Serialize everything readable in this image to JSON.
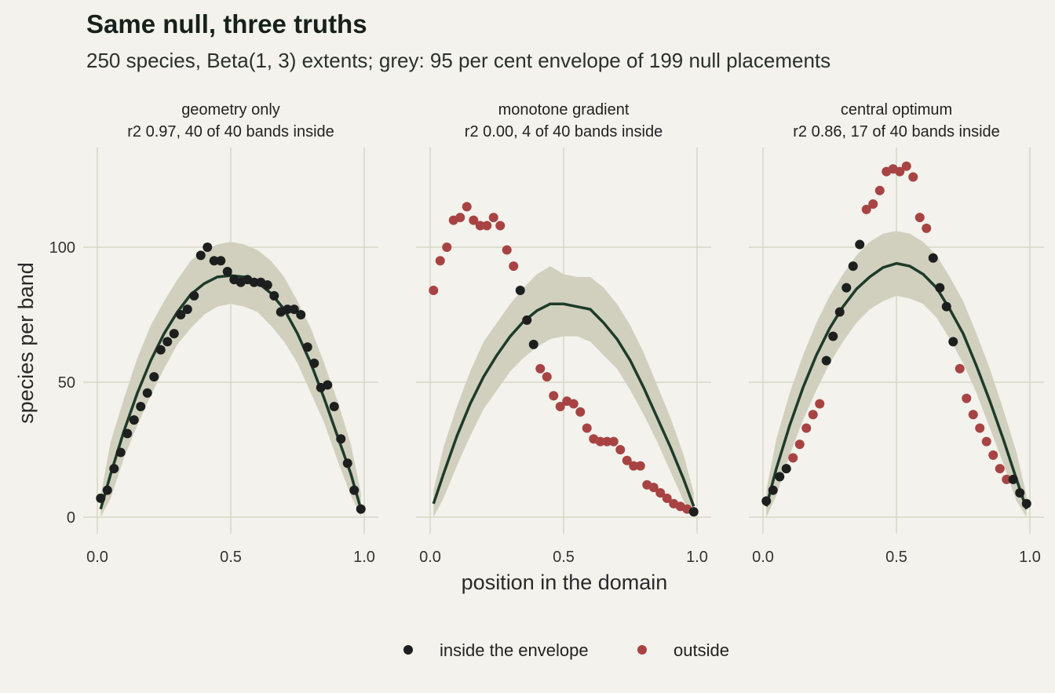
{
  "title": "Same null, three truths",
  "subtitle": "250 species, Beta(1, 3) extents; grey: 95 per cent envelope of 199 null placements",
  "colors": {
    "background": "#f3f2ec",
    "envelope": "#d1d0bf",
    "null_line": "#1e3b2a",
    "inside": "#1c1f1d",
    "outside": "#a84343",
    "grid": "#d8d7c6"
  },
  "legend": {
    "inside_label": "inside the envelope",
    "outside_label": "outside"
  },
  "chart_data": [
    {
      "type": "scatter",
      "panel_title": "geometry only",
      "panel_subtitle": "r2 0.97, 40 of 40 bands inside",
      "xlabel": "position in the domain",
      "ylabel": "species per band",
      "xlim": [
        0,
        1
      ],
      "ylim": [
        0,
        130
      ],
      "x_ticks": [
        "0.0",
        "0.5",
        "1.0"
      ],
      "y_ticks": [
        "0",
        "50",
        "100"
      ],
      "null_mean": [
        [
          0.0125,
          3
        ],
        [
          0.05,
          16
        ],
        [
          0.1,
          32
        ],
        [
          0.15,
          46
        ],
        [
          0.2,
          58
        ],
        [
          0.25,
          68
        ],
        [
          0.3,
          76
        ],
        [
          0.35,
          82.5
        ],
        [
          0.4,
          86.5
        ],
        [
          0.45,
          89
        ],
        [
          0.5,
          89.5
        ],
        [
          0.55,
          89
        ],
        [
          0.6,
          87
        ],
        [
          0.65,
          83
        ],
        [
          0.7,
          77
        ],
        [
          0.75,
          68
        ],
        [
          0.8,
          57
        ],
        [
          0.85,
          44
        ],
        [
          0.9,
          30
        ],
        [
          0.95,
          16
        ],
        [
          0.9875,
          3
        ]
      ],
      "envelope": [
        [
          0.0125,
          0,
          8
        ],
        [
          0.05,
          7,
          28
        ],
        [
          0.1,
          22,
          44
        ],
        [
          0.15,
          34,
          59
        ],
        [
          0.2,
          45,
          71
        ],
        [
          0.25,
          55,
          80
        ],
        [
          0.3,
          64,
          88
        ],
        [
          0.35,
          70,
          95
        ],
        [
          0.4,
          75,
          99
        ],
        [
          0.45,
          78,
          101
        ],
        [
          0.5,
          79,
          102
        ],
        [
          0.55,
          78,
          101
        ],
        [
          0.6,
          76,
          99
        ],
        [
          0.65,
          71,
          95
        ],
        [
          0.7,
          65,
          89
        ],
        [
          0.75,
          57,
          80
        ],
        [
          0.8,
          46,
          70
        ],
        [
          0.85,
          35,
          57
        ],
        [
          0.9,
          21,
          43
        ],
        [
          0.95,
          8,
          27
        ],
        [
          0.9875,
          0,
          9
        ]
      ],
      "points": [
        {
          "x": 0.0125,
          "y": 7,
          "inside": true
        },
        {
          "x": 0.0375,
          "y": 10,
          "inside": true
        },
        {
          "x": 0.0625,
          "y": 18,
          "inside": true
        },
        {
          "x": 0.0875,
          "y": 24,
          "inside": true
        },
        {
          "x": 0.1125,
          "y": 31,
          "inside": true
        },
        {
          "x": 0.1375,
          "y": 36,
          "inside": true
        },
        {
          "x": 0.1625,
          "y": 41,
          "inside": true
        },
        {
          "x": 0.1875,
          "y": 46,
          "inside": true
        },
        {
          "x": 0.2125,
          "y": 52,
          "inside": true
        },
        {
          "x": 0.2375,
          "y": 62,
          "inside": true
        },
        {
          "x": 0.2625,
          "y": 65,
          "inside": true
        },
        {
          "x": 0.2875,
          "y": 68,
          "inside": true
        },
        {
          "x": 0.3125,
          "y": 75,
          "inside": true
        },
        {
          "x": 0.3375,
          "y": 77,
          "inside": true
        },
        {
          "x": 0.3625,
          "y": 82,
          "inside": true
        },
        {
          "x": 0.3875,
          "y": 97,
          "inside": true
        },
        {
          "x": 0.4125,
          "y": 100,
          "inside": true
        },
        {
          "x": 0.4375,
          "y": 95,
          "inside": true
        },
        {
          "x": 0.4625,
          "y": 95,
          "inside": true
        },
        {
          "x": 0.4875,
          "y": 91,
          "inside": true
        },
        {
          "x": 0.5125,
          "y": 88,
          "inside": true
        },
        {
          "x": 0.5375,
          "y": 87,
          "inside": true
        },
        {
          "x": 0.5625,
          "y": 88,
          "inside": true
        },
        {
          "x": 0.5875,
          "y": 87,
          "inside": true
        },
        {
          "x": 0.6125,
          "y": 87,
          "inside": true
        },
        {
          "x": 0.6375,
          "y": 86,
          "inside": true
        },
        {
          "x": 0.6625,
          "y": 82,
          "inside": true
        },
        {
          "x": 0.6875,
          "y": 76,
          "inside": true
        },
        {
          "x": 0.7125,
          "y": 77,
          "inside": true
        },
        {
          "x": 0.7375,
          "y": 77,
          "inside": true
        },
        {
          "x": 0.7625,
          "y": 75,
          "inside": true
        },
        {
          "x": 0.7875,
          "y": 63,
          "inside": true
        },
        {
          "x": 0.8125,
          "y": 57,
          "inside": true
        },
        {
          "x": 0.8375,
          "y": 48,
          "inside": true
        },
        {
          "x": 0.8625,
          "y": 49,
          "inside": true
        },
        {
          "x": 0.8875,
          "y": 41,
          "inside": true
        },
        {
          "x": 0.9125,
          "y": 29,
          "inside": true
        },
        {
          "x": 0.9375,
          "y": 20,
          "inside": true
        },
        {
          "x": 0.9625,
          "y": 10,
          "inside": true
        },
        {
          "x": 0.9875,
          "y": 3,
          "inside": true
        }
      ]
    },
    {
      "type": "scatter",
      "panel_title": "monotone gradient",
      "panel_subtitle": "r2 0.00, 4 of 40 bands inside",
      "xlabel": "position in the domain",
      "ylabel": "species per band",
      "xlim": [
        0,
        1
      ],
      "ylim": [
        0,
        130
      ],
      "x_ticks": [
        "0.0",
        "0.5",
        "1.0"
      ],
      "y_ticks": [
        "0",
        "50",
        "100"
      ],
      "null_mean": [
        [
          0.0125,
          5
        ],
        [
          0.05,
          16
        ],
        [
          0.1,
          30
        ],
        [
          0.15,
          42
        ],
        [
          0.2,
          52
        ],
        [
          0.25,
          60
        ],
        [
          0.3,
          67
        ],
        [
          0.35,
          72.5
        ],
        [
          0.4,
          76.5
        ],
        [
          0.45,
          79
        ],
        [
          0.5,
          79
        ],
        [
          0.55,
          78
        ],
        [
          0.6,
          77
        ],
        [
          0.65,
          72
        ],
        [
          0.7,
          66
        ],
        [
          0.75,
          58
        ],
        [
          0.8,
          48
        ],
        [
          0.85,
          37
        ],
        [
          0.9,
          26
        ],
        [
          0.95,
          14
        ],
        [
          0.9875,
          4
        ]
      ],
      "envelope": [
        [
          0.0125,
          0,
          10
        ],
        [
          0.05,
          7,
          26
        ],
        [
          0.1,
          19,
          41
        ],
        [
          0.15,
          30,
          54
        ],
        [
          0.2,
          40,
          65
        ],
        [
          0.25,
          47,
          72
        ],
        [
          0.3,
          54,
          79
        ],
        [
          0.35,
          59,
          85
        ],
        [
          0.4,
          63,
          90
        ],
        [
          0.45,
          66,
          93
        ],
        [
          0.5,
          67,
          90
        ],
        [
          0.55,
          67,
          89
        ],
        [
          0.6,
          65,
          89
        ],
        [
          0.65,
          60,
          85
        ],
        [
          0.7,
          55,
          79
        ],
        [
          0.75,
          47,
          71
        ],
        [
          0.8,
          38,
          61
        ],
        [
          0.85,
          28,
          49
        ],
        [
          0.9,
          17,
          37
        ],
        [
          0.95,
          6,
          23
        ],
        [
          0.9875,
          0,
          9
        ]
      ],
      "points": [
        {
          "x": 0.0125,
          "y": 84,
          "inside": false
        },
        {
          "x": 0.0375,
          "y": 95,
          "inside": false
        },
        {
          "x": 0.0625,
          "y": 100,
          "inside": false
        },
        {
          "x": 0.0875,
          "y": 110,
          "inside": false
        },
        {
          "x": 0.1125,
          "y": 111,
          "inside": false
        },
        {
          "x": 0.1375,
          "y": 115,
          "inside": false
        },
        {
          "x": 0.1625,
          "y": 110,
          "inside": false
        },
        {
          "x": 0.1875,
          "y": 108,
          "inside": false
        },
        {
          "x": 0.2125,
          "y": 108,
          "inside": false
        },
        {
          "x": 0.2375,
          "y": 111,
          "inside": false
        },
        {
          "x": 0.2625,
          "y": 108,
          "inside": false
        },
        {
          "x": 0.2875,
          "y": 99,
          "inside": false
        },
        {
          "x": 0.3125,
          "y": 93,
          "inside": false
        },
        {
          "x": 0.3375,
          "y": 84,
          "inside": true
        },
        {
          "x": 0.3625,
          "y": 73,
          "inside": true
        },
        {
          "x": 0.3875,
          "y": 64,
          "inside": true
        },
        {
          "x": 0.4125,
          "y": 55,
          "inside": false
        },
        {
          "x": 0.4375,
          "y": 52,
          "inside": false
        },
        {
          "x": 0.4625,
          "y": 45,
          "inside": false
        },
        {
          "x": 0.4875,
          "y": 41,
          "inside": false
        },
        {
          "x": 0.5125,
          "y": 43,
          "inside": false
        },
        {
          "x": 0.5375,
          "y": 42,
          "inside": false
        },
        {
          "x": 0.5625,
          "y": 39,
          "inside": false
        },
        {
          "x": 0.5875,
          "y": 33,
          "inside": false
        },
        {
          "x": 0.6125,
          "y": 29,
          "inside": false
        },
        {
          "x": 0.6375,
          "y": 28,
          "inside": false
        },
        {
          "x": 0.6625,
          "y": 28,
          "inside": false
        },
        {
          "x": 0.6875,
          "y": 28,
          "inside": false
        },
        {
          "x": 0.7125,
          "y": 25,
          "inside": false
        },
        {
          "x": 0.7375,
          "y": 21,
          "inside": false
        },
        {
          "x": 0.7625,
          "y": 19,
          "inside": false
        },
        {
          "x": 0.7875,
          "y": 19,
          "inside": false
        },
        {
          "x": 0.8125,
          "y": 12,
          "inside": false
        },
        {
          "x": 0.8375,
          "y": 11,
          "inside": false
        },
        {
          "x": 0.8625,
          "y": 9,
          "inside": false
        },
        {
          "x": 0.8875,
          "y": 7,
          "inside": false
        },
        {
          "x": 0.9125,
          "y": 5,
          "inside": false
        },
        {
          "x": 0.9375,
          "y": 4,
          "inside": false
        },
        {
          "x": 0.9625,
          "y": 3,
          "inside": false
        },
        {
          "x": 0.9875,
          "y": 2,
          "inside": true
        }
      ]
    },
    {
      "type": "scatter",
      "panel_title": "central optimum",
      "panel_subtitle": "r2 0.86, 17 of 40 bands inside",
      "xlabel": "position in the domain",
      "ylabel": "species per band",
      "xlim": [
        0,
        1
      ],
      "ylim": [
        0,
        130
      ],
      "x_ticks": [
        "0.0",
        "0.5",
        "1.0"
      ],
      "y_ticks": [
        "0",
        "50",
        "100"
      ],
      "null_mean": [
        [
          0.0125,
          4
        ],
        [
          0.05,
          18
        ],
        [
          0.1,
          34
        ],
        [
          0.15,
          48
        ],
        [
          0.2,
          60
        ],
        [
          0.25,
          70
        ],
        [
          0.3,
          78
        ],
        [
          0.35,
          84.5
        ],
        [
          0.4,
          89
        ],
        [
          0.45,
          92.5
        ],
        [
          0.5,
          94
        ],
        [
          0.55,
          93
        ],
        [
          0.6,
          90
        ],
        [
          0.65,
          85
        ],
        [
          0.7,
          77
        ],
        [
          0.75,
          68
        ],
        [
          0.8,
          56
        ],
        [
          0.85,
          43
        ],
        [
          0.9,
          29
        ],
        [
          0.95,
          14
        ],
        [
          0.9875,
          3
        ]
      ],
      "envelope": [
        [
          0.0125,
          0,
          10
        ],
        [
          0.05,
          8,
          29
        ],
        [
          0.1,
          23,
          46
        ],
        [
          0.15,
          36,
          60
        ],
        [
          0.2,
          47,
          72
        ],
        [
          0.25,
          57,
          82
        ],
        [
          0.3,
          65,
          90
        ],
        [
          0.35,
          72,
          97
        ],
        [
          0.4,
          77,
          102
        ],
        [
          0.45,
          80,
          105
        ],
        [
          0.5,
          82,
          106
        ],
        [
          0.55,
          81,
          105
        ],
        [
          0.6,
          79,
          102
        ],
        [
          0.65,
          74,
          97
        ],
        [
          0.7,
          66,
          89
        ],
        [
          0.75,
          57,
          80
        ],
        [
          0.8,
          46,
          68
        ],
        [
          0.85,
          33,
          55
        ],
        [
          0.9,
          20,
          40
        ],
        [
          0.95,
          6,
          24
        ],
        [
          0.9875,
          0,
          8
        ]
      ],
      "points": [
        {
          "x": 0.0125,
          "y": 6,
          "inside": true
        },
        {
          "x": 0.0375,
          "y": 10,
          "inside": true
        },
        {
          "x": 0.0625,
          "y": 15,
          "inside": true
        },
        {
          "x": 0.0875,
          "y": 18,
          "inside": true
        },
        {
          "x": 0.1125,
          "y": 22,
          "inside": false
        },
        {
          "x": 0.1375,
          "y": 27,
          "inside": false
        },
        {
          "x": 0.1625,
          "y": 33,
          "inside": false
        },
        {
          "x": 0.1875,
          "y": 38,
          "inside": false
        },
        {
          "x": 0.2125,
          "y": 42,
          "inside": false
        },
        {
          "x": 0.2375,
          "y": 58,
          "inside": true
        },
        {
          "x": 0.2625,
          "y": 67,
          "inside": true
        },
        {
          "x": 0.2875,
          "y": 76,
          "inside": true
        },
        {
          "x": 0.3125,
          "y": 85,
          "inside": true
        },
        {
          "x": 0.3375,
          "y": 93,
          "inside": true
        },
        {
          "x": 0.3625,
          "y": 101,
          "inside": true
        },
        {
          "x": 0.3875,
          "y": 114,
          "inside": false
        },
        {
          "x": 0.4125,
          "y": 116,
          "inside": false
        },
        {
          "x": 0.4375,
          "y": 121,
          "inside": false
        },
        {
          "x": 0.4625,
          "y": 128,
          "inside": false
        },
        {
          "x": 0.4875,
          "y": 129,
          "inside": false
        },
        {
          "x": 0.5125,
          "y": 128,
          "inside": false
        },
        {
          "x": 0.5375,
          "y": 130,
          "inside": false
        },
        {
          "x": 0.5625,
          "y": 126,
          "inside": false
        },
        {
          "x": 0.5875,
          "y": 111,
          "inside": false
        },
        {
          "x": 0.6125,
          "y": 107,
          "inside": false
        },
        {
          "x": 0.6375,
          "y": 96,
          "inside": true
        },
        {
          "x": 0.6625,
          "y": 85,
          "inside": true
        },
        {
          "x": 0.6875,
          "y": 78,
          "inside": true
        },
        {
          "x": 0.7125,
          "y": 65,
          "inside": true
        },
        {
          "x": 0.7375,
          "y": 55,
          "inside": false
        },
        {
          "x": 0.7625,
          "y": 44,
          "inside": false
        },
        {
          "x": 0.7875,
          "y": 38,
          "inside": false
        },
        {
          "x": 0.8125,
          "y": 33,
          "inside": false
        },
        {
          "x": 0.8375,
          "y": 28,
          "inside": false
        },
        {
          "x": 0.8625,
          "y": 23,
          "inside": false
        },
        {
          "x": 0.8875,
          "y": 18,
          "inside": false
        },
        {
          "x": 0.9125,
          "y": 14,
          "inside": false
        },
        {
          "x": 0.9375,
          "y": 14,
          "inside": true
        },
        {
          "x": 0.9625,
          "y": 9,
          "inside": true
        },
        {
          "x": 0.9875,
          "y": 5,
          "inside": true
        }
      ]
    }
  ]
}
